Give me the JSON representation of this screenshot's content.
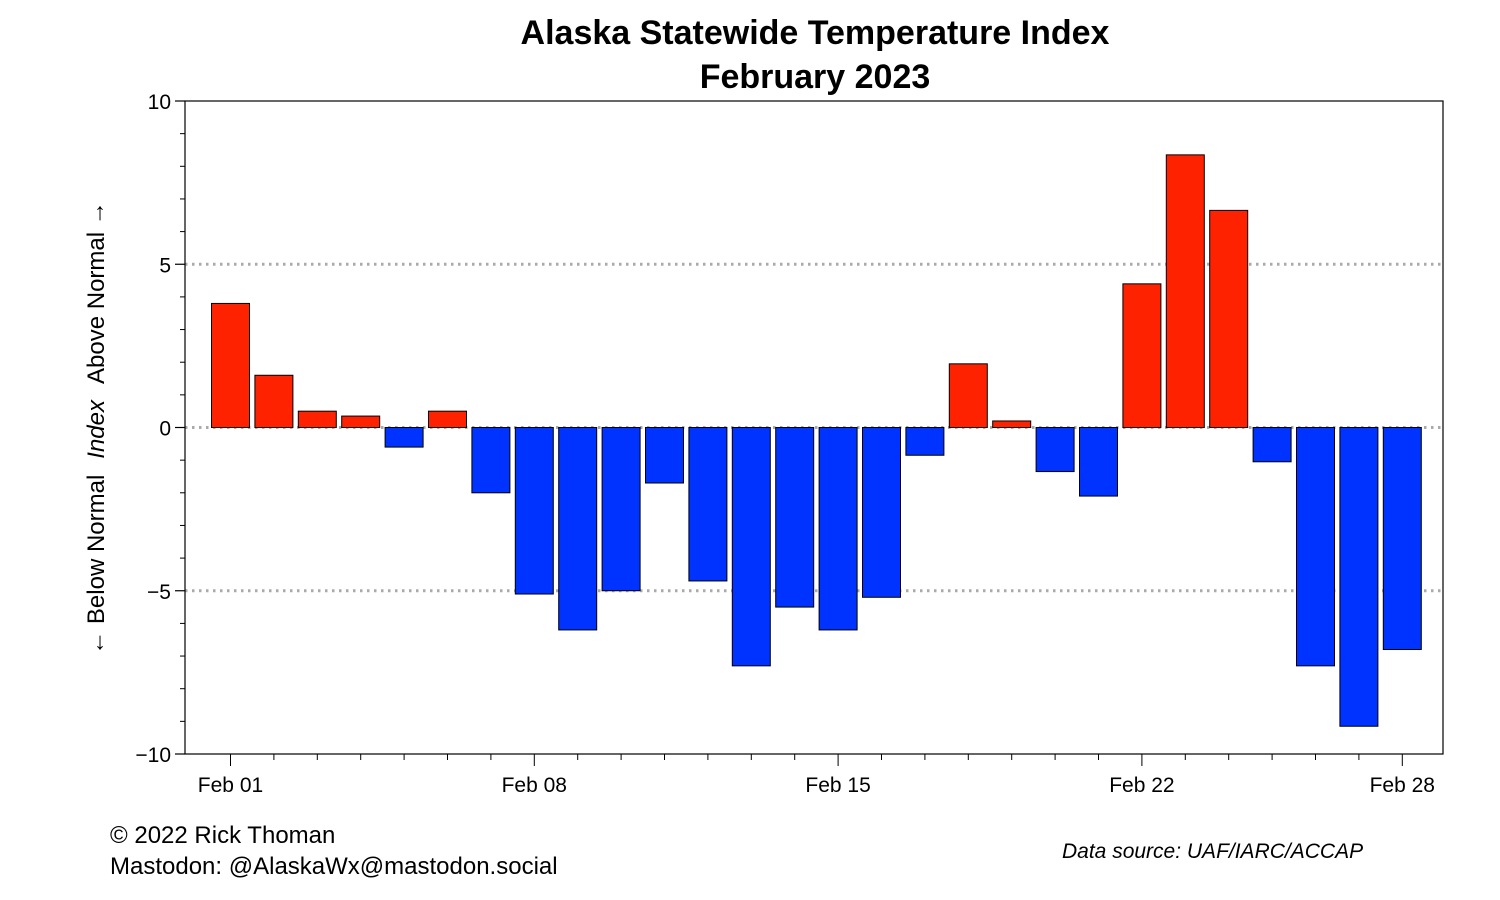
{
  "chart_data": {
    "type": "bar",
    "title": "Alaska Statewide Temperature Index",
    "subtitle": "February 2023",
    "ylabel_below": "← Below Normal",
    "ylabel_index": "Index",
    "ylabel_above": "Above Normal →",
    "xlabel": "",
    "ylim": [
      -10,
      10
    ],
    "yticks": [
      10,
      5,
      0,
      -5,
      -10
    ],
    "ytick_labels": [
      "10",
      "5",
      "0",
      "−5",
      "−10"
    ],
    "x_tick_labels": [
      {
        "day": 1,
        "label": "Feb 01"
      },
      {
        "day": 8,
        "label": "Feb 08"
      },
      {
        "day": 15,
        "label": "Feb 15"
      },
      {
        "day": 22,
        "label": "Feb 22"
      },
      {
        "day": 28,
        "label": "Feb 28"
      }
    ],
    "reference_lines": [
      5,
      0,
      -5
    ],
    "days": [
      1,
      2,
      3,
      4,
      5,
      6,
      7,
      8,
      9,
      10,
      11,
      12,
      13,
      14,
      15,
      16,
      17,
      18,
      19,
      20,
      21,
      22,
      23,
      24,
      25,
      26,
      27,
      28
    ],
    "values": [
      3.8,
      1.6,
      0.5,
      0.35,
      -0.6,
      0.5,
      -2.0,
      -5.1,
      -6.2,
      -5.0,
      -1.7,
      -4.7,
      -7.3,
      -5.5,
      -6.2,
      -5.2,
      -0.85,
      1.95,
      0.2,
      -1.35,
      -2.1,
      4.4,
      8.35,
      6.65,
      -1.05,
      -7.3,
      -9.15,
      -6.8
    ],
    "colors": {
      "above": "#ff2200",
      "below": "#0033ff",
      "reference_line": "#aaaaaa"
    },
    "grid": false
  },
  "footer": {
    "copyright": "© 2022 Rick Thoman",
    "mastodon": "Mastodon: @AlaskaWx@mastodon.social",
    "source": "Data source: UAF/IARC/ACCAP"
  }
}
